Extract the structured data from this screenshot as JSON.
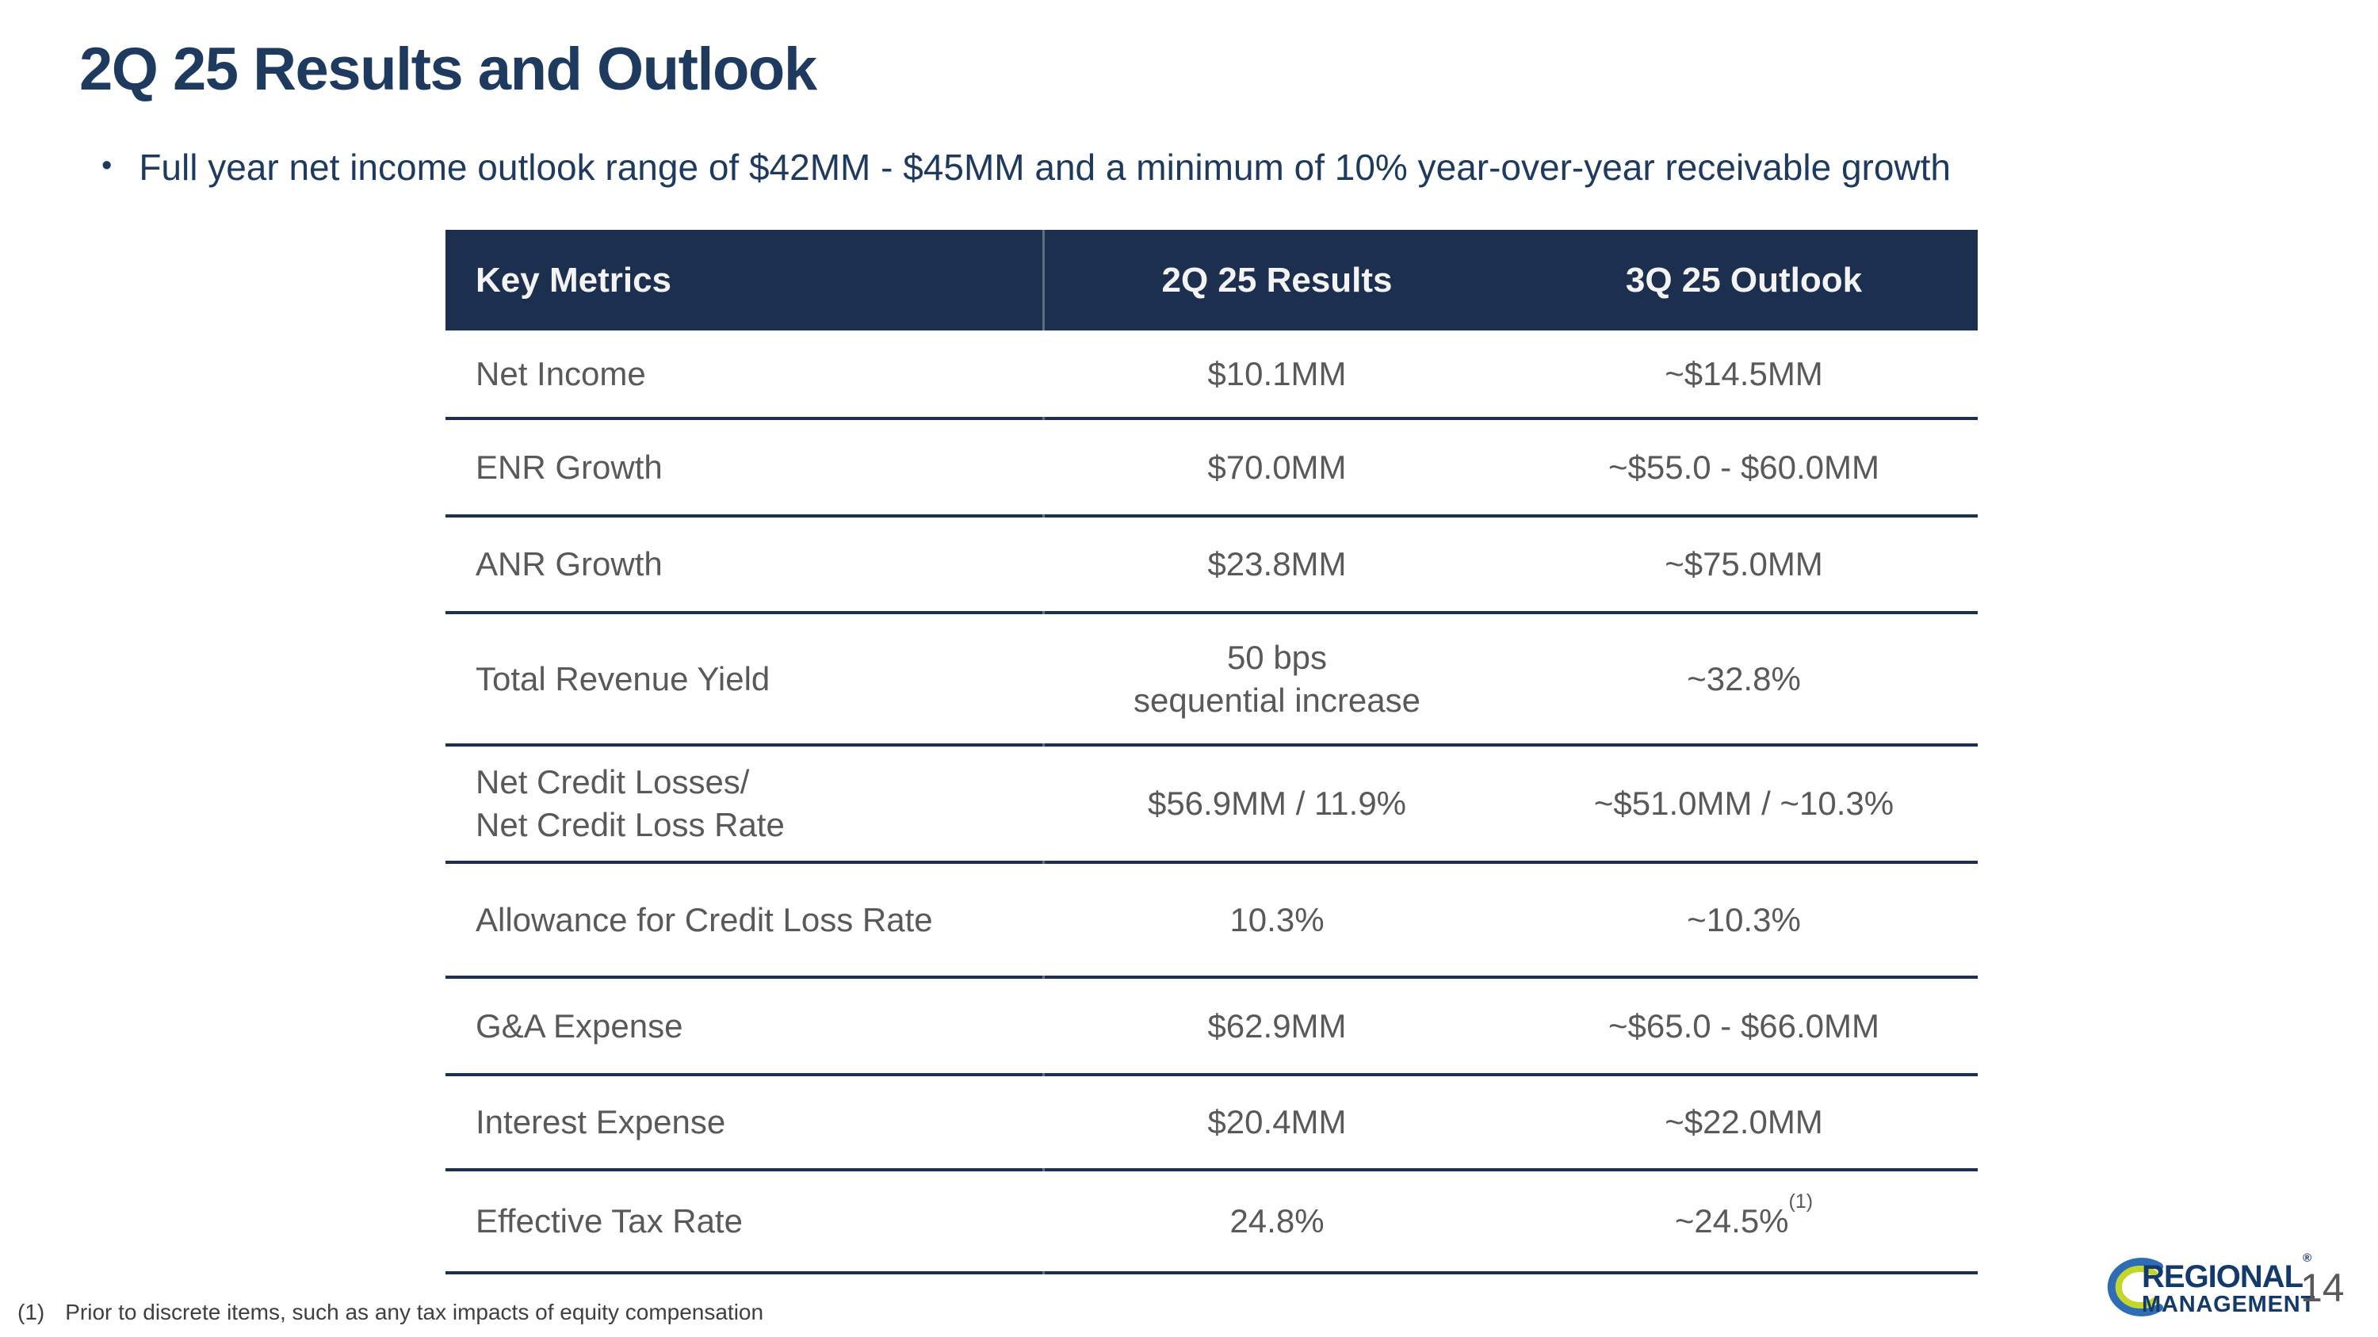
{
  "slide": {
    "title": "2Q 25 Results and Outlook",
    "bullet_marker": "•",
    "bullet": "Full year net income outlook range of $42MM - $45MM and a minimum of 10% year-over-year receivable growth",
    "page_number": "14"
  },
  "table": {
    "headers": [
      "Key Metrics",
      "2Q 25 Results",
      "3Q 25 Outlook"
    ],
    "rows": [
      {
        "metric": "Net Income",
        "results": "$10.1MM",
        "outlook": "~$14.5MM"
      },
      {
        "metric": "ENR Growth",
        "results": "$70.0MM",
        "outlook": "~$55.0 - $60.0MM"
      },
      {
        "metric": "ANR Growth",
        "results": "$23.8MM",
        "outlook": "~$75.0MM"
      },
      {
        "metric": "Total Revenue Yield",
        "results": "50 bps\nsequential increase",
        "outlook": "~32.8%"
      },
      {
        "metric": "Net Credit Losses/\nNet Credit Loss Rate",
        "results": "$56.9MM / 11.9%",
        "outlook": "~$51.0MM / ~10.3%"
      },
      {
        "metric": "Allowance for Credit Loss Rate",
        "results": "10.3%",
        "outlook": "~10.3%"
      },
      {
        "metric": "G&A Expense",
        "results": "$62.9MM",
        "outlook": "~$65.0 - $66.0MM"
      },
      {
        "metric": "Interest Expense",
        "results": "$20.4MM",
        "outlook": "~$22.0MM"
      },
      {
        "metric": "Effective Tax Rate",
        "results": "24.8%",
        "outlook": "~24.5%",
        "outlook_superscript": "(1)"
      }
    ]
  },
  "footnote": {
    "marker": "(1)",
    "text": "Prior to discrete items, such as any tax impacts of equity compensation"
  },
  "logo": {
    "line1": "REGIONAL",
    "registered": "®",
    "line2": "MANAGEMENT"
  },
  "colors": {
    "header_bg": "#1d2f4e",
    "divider": "#1d3050",
    "title_text": "#1e3a5f",
    "body_text": "#595959",
    "header_text": "#f4f4f4",
    "footnote_text": "#3f3f3f",
    "page_number_text": "#595959",
    "logo_navy": "#143a6c",
    "logo_blue": "#2e6db6",
    "logo_green": "#c3d629",
    "background": "#ffffff"
  }
}
